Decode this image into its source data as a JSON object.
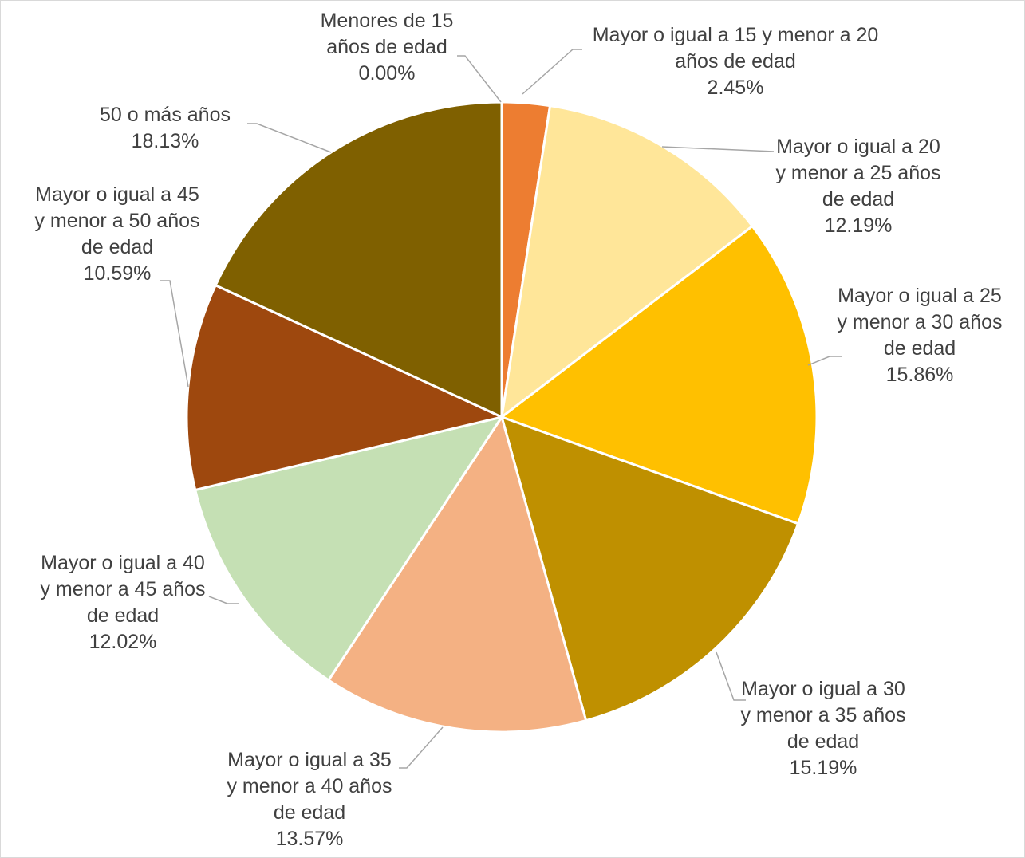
{
  "chart_data": {
    "type": "pie",
    "categories": [
      "Menores de 15 años de edad",
      "Mayor o igual a 15 y menor a 20 años de edad",
      "Mayor o igual a 20 y menor a 25 años de edad",
      "Mayor o igual a 25 y menor a 30 años de edad",
      "Mayor o igual a 30 y menor a 35 años de edad",
      "Mayor o igual a 35 y menor a 40 años de edad",
      "Mayor o igual a 40 y menor a 45 años de edad",
      "Mayor o igual a 45 y menor a 50 años de edad",
      "50 o más años"
    ],
    "values": [
      0,
      2.45,
      12.19,
      15.86,
      15.19,
      13.57,
      12.02,
      10.59,
      18.13
    ],
    "value_labels": [
      "0.00%",
      "2.45%",
      "12.19%",
      "15.86%",
      "15.19%",
      "13.57%",
      "12.02%",
      "10.59%",
      "18.13%"
    ],
    "colors": [
      "#5B9BD5",
      "#ED7D31",
      "#FFE699",
      "#FFC000",
      "#BF9000",
      "#F4B183",
      "#C5E0B4",
      "#9E480E",
      "#7F6000"
    ]
  }
}
